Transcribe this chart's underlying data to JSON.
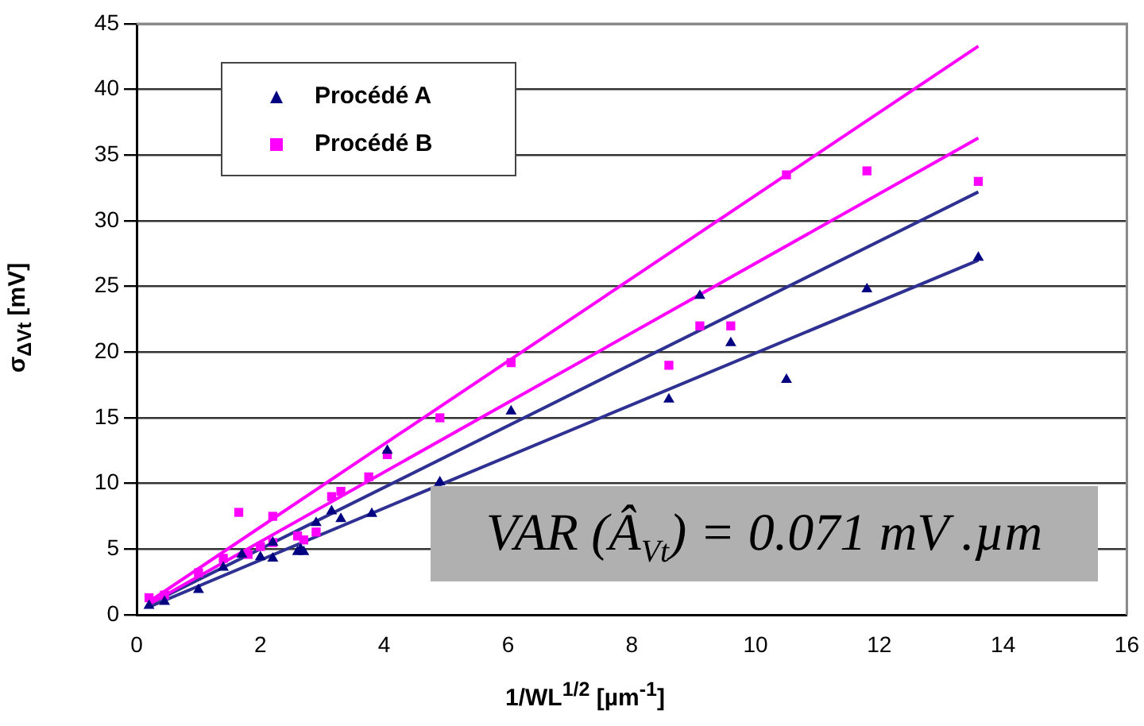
{
  "chart_data": {
    "type": "scatter",
    "xlabel": "1/WL$^{1/2}$ [µm$^{-1}$]",
    "ylabel": "σ$_{ΔVt}$ [mV]",
    "xlim": [
      0,
      16
    ],
    "xticks": [
      0,
      2,
      4,
      6,
      8,
      10,
      12,
      14,
      16
    ],
    "ylim": [
      0,
      45
    ],
    "yticks": [
      0,
      5,
      10,
      15,
      20,
      25,
      30,
      35,
      40,
      45
    ],
    "grid": "y",
    "legend": "top left",
    "annotations": [
      "VAR (Â$_{Vt}$) = 0.071 mV .µm"
    ],
    "series": [
      {
        "name": "Procédé A",
        "color": "#000080",
        "marker": "triangle",
        "x": [
          0.2,
          0.45,
          1.0,
          1.4,
          1.7,
          2.0,
          2.2,
          2.2,
          2.6,
          2.65,
          2.7,
          2.9,
          3.15,
          3.3,
          3.8,
          4.05,
          4.9,
          6.05,
          8.6,
          9.1,
          9.6,
          10.5,
          11.8,
          13.6
        ],
        "values": [
          0.7,
          1.0,
          1.9,
          3.6,
          4.6,
          4.4,
          4.3,
          5.5,
          4.8,
          5.0,
          4.8,
          7.0,
          7.9,
          7.3,
          7.7,
          12.5,
          10.1,
          15.5,
          16.4,
          24.3,
          20.7,
          17.9,
          24.8,
          27.2
        ]
      },
      {
        "name": "Procédé B",
        "color": "#ff00ff",
        "marker": "square",
        "x": [
          0.2,
          0.45,
          1.0,
          1.4,
          1.65,
          1.8,
          2.0,
          2.2,
          2.2,
          2.6,
          2.7,
          2.9,
          3.15,
          3.3,
          3.75,
          4.05,
          4.9,
          6.05,
          8.6,
          9.1,
          9.6,
          10.5,
          11.8,
          13.6
        ],
        "values": [
          1.3,
          1.5,
          3.2,
          4.3,
          7.8,
          4.6,
          5.2,
          7.5,
          5.5,
          6.0,
          5.7,
          6.3,
          9.0,
          9.4,
          10.5,
          12.2,
          15.0,
          19.2,
          19.0,
          22.0,
          22.0,
          33.5,
          33.8,
          33.0
        ]
      },
      {
        "type": "line",
        "color": "#ff00ff",
        "marker": "none",
        "x": [
          0.2,
          13.6
        ],
        "values": [
          1.0,
          43.3
        ]
      },
      {
        "type": "line",
        "color": "#ff00ff",
        "marker": "none",
        "x": [
          0.2,
          13.6
        ],
        "values": [
          0.8,
          36.3
        ]
      },
      {
        "type": "line",
        "color": "#2e3192",
        "marker": "none",
        "x": [
          0.2,
          13.6
        ],
        "values": [
          0.8,
          32.2
        ]
      },
      {
        "type": "line",
        "color": "#2e3192",
        "marker": "none",
        "x": [
          0.2,
          4.9,
          13.6
        ],
        "values": [
          0.6,
          9.9,
          27.0
        ]
      }
    ]
  }
}
